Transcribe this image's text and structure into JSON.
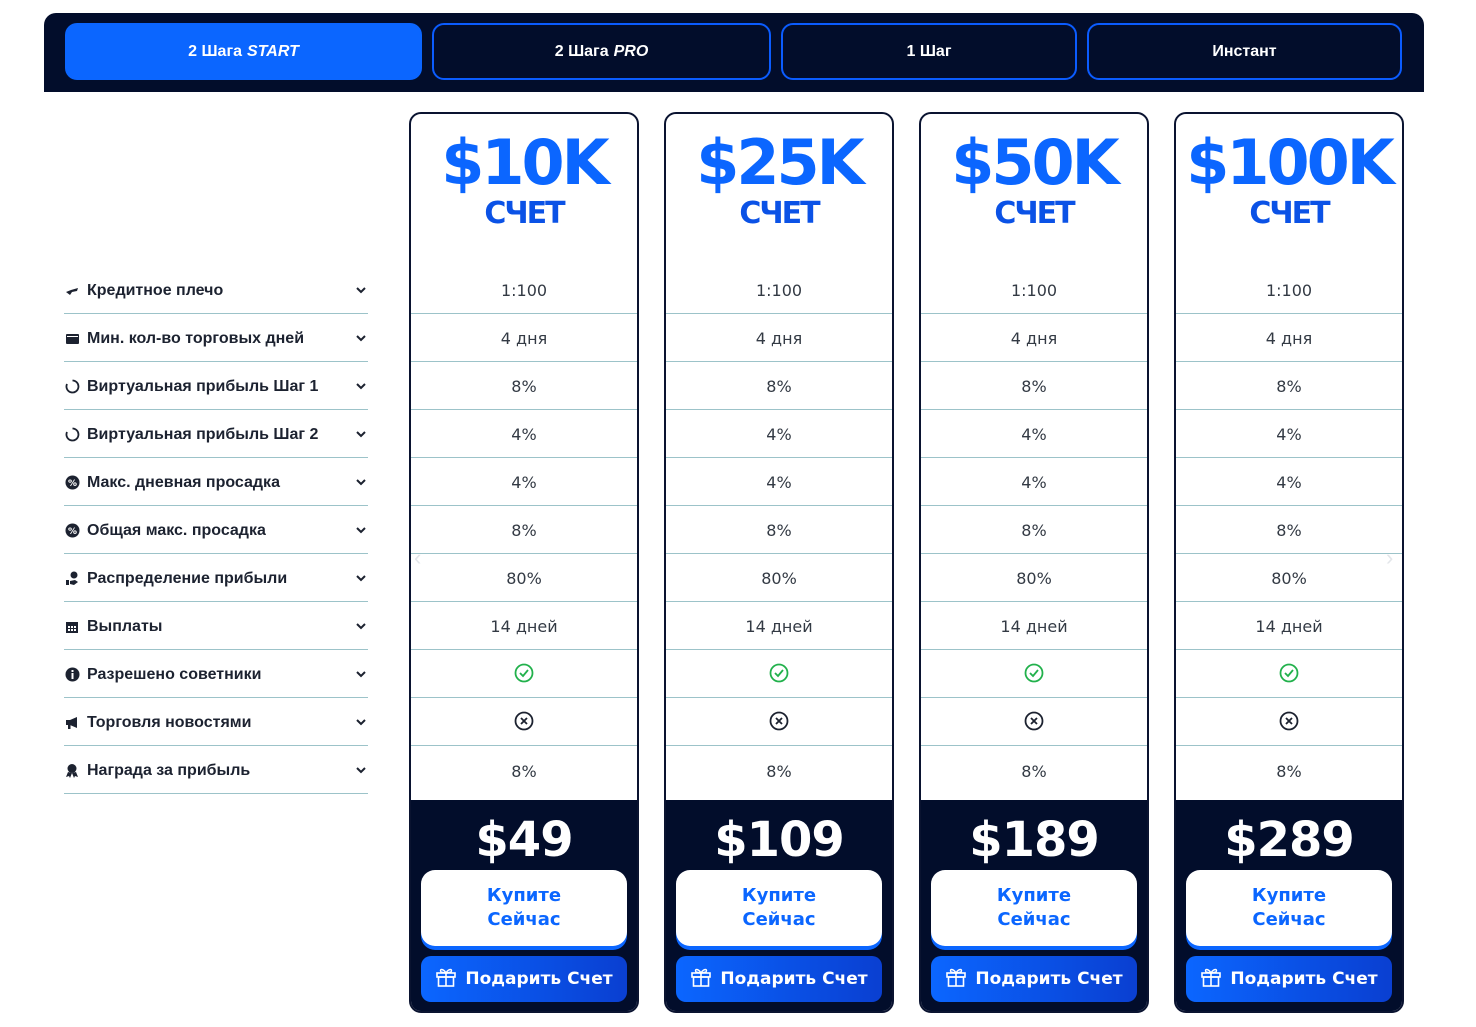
{
  "tabs": [
    {
      "label": "2 Шага",
      "label_em": "START",
      "active": true
    },
    {
      "label": "2 Шага",
      "label_em": "PRO",
      "active": false
    },
    {
      "label": "1 Шаг",
      "label_em": "",
      "active": false
    },
    {
      "label": "Инстант",
      "label_em": "",
      "active": false
    }
  ],
  "features": [
    {
      "label": "Кредитное плечо",
      "icon": "hand-icon"
    },
    {
      "label": "Мин. кол-во торговых дней",
      "icon": "wallet-icon"
    },
    {
      "label": "Виртуальная прибыль Шаг 1",
      "icon": "spinner-icon"
    },
    {
      "label": "Виртуальная прибыль Шаг 2",
      "icon": "spinner-icon"
    },
    {
      "label": "Макс. дневная просадка",
      "icon": "percent-icon"
    },
    {
      "label": "Общая макс. просадка",
      "icon": "percent-icon"
    },
    {
      "label": "Распределение прибыли",
      "icon": "hand-coin-icon"
    },
    {
      "label": "Выплаты",
      "icon": "calendar-icon"
    },
    {
      "label": "Разрешено советники",
      "icon": "info-icon"
    },
    {
      "label": "Торговля новостями",
      "icon": "megaphone-icon"
    },
    {
      "label": "Награда за прибыль",
      "icon": "award-icon"
    }
  ],
  "plans": [
    {
      "amount": "$10K",
      "account": "СЧЕТ",
      "values": [
        "1:100",
        "4 дня",
        "8%",
        "4%",
        "4%",
        "8%",
        "80%",
        "14 дней",
        "check",
        "cross",
        "8%"
      ],
      "price": "$49",
      "buy_line1": "Купите",
      "buy_line2": "Сейчас",
      "gift_label": "Подарить Счет"
    },
    {
      "amount": "$25K",
      "account": "СЧЕТ",
      "values": [
        "1:100",
        "4 дня",
        "8%",
        "4%",
        "4%",
        "8%",
        "80%",
        "14 дней",
        "check",
        "cross",
        "8%"
      ],
      "price": "$109",
      "buy_line1": "Купите",
      "buy_line2": "Сейчас",
      "gift_label": "Подарить Счет"
    },
    {
      "amount": "$50K",
      "account": "СЧЕТ",
      "values": [
        "1:100",
        "4 дня",
        "8%",
        "4%",
        "4%",
        "8%",
        "80%",
        "14 дней",
        "check",
        "cross",
        "8%"
      ],
      "price": "$189",
      "buy_line1": "Купите",
      "buy_line2": "Сейчас",
      "gift_label": "Подарить Счет"
    },
    {
      "amount": "$100K",
      "account": "СЧЕТ",
      "values": [
        "1:100",
        "4 дня",
        "8%",
        "4%",
        "4%",
        "8%",
        "80%",
        "14 дней",
        "check",
        "cross",
        "8%"
      ],
      "price": "$289",
      "buy_line1": "Купите",
      "buy_line2": "Сейчас",
      "gift_label": "Подарить Счет"
    }
  ],
  "colors": {
    "accent": "#0b66ff",
    "dark": "#020d2b",
    "check": "#22b14c"
  }
}
